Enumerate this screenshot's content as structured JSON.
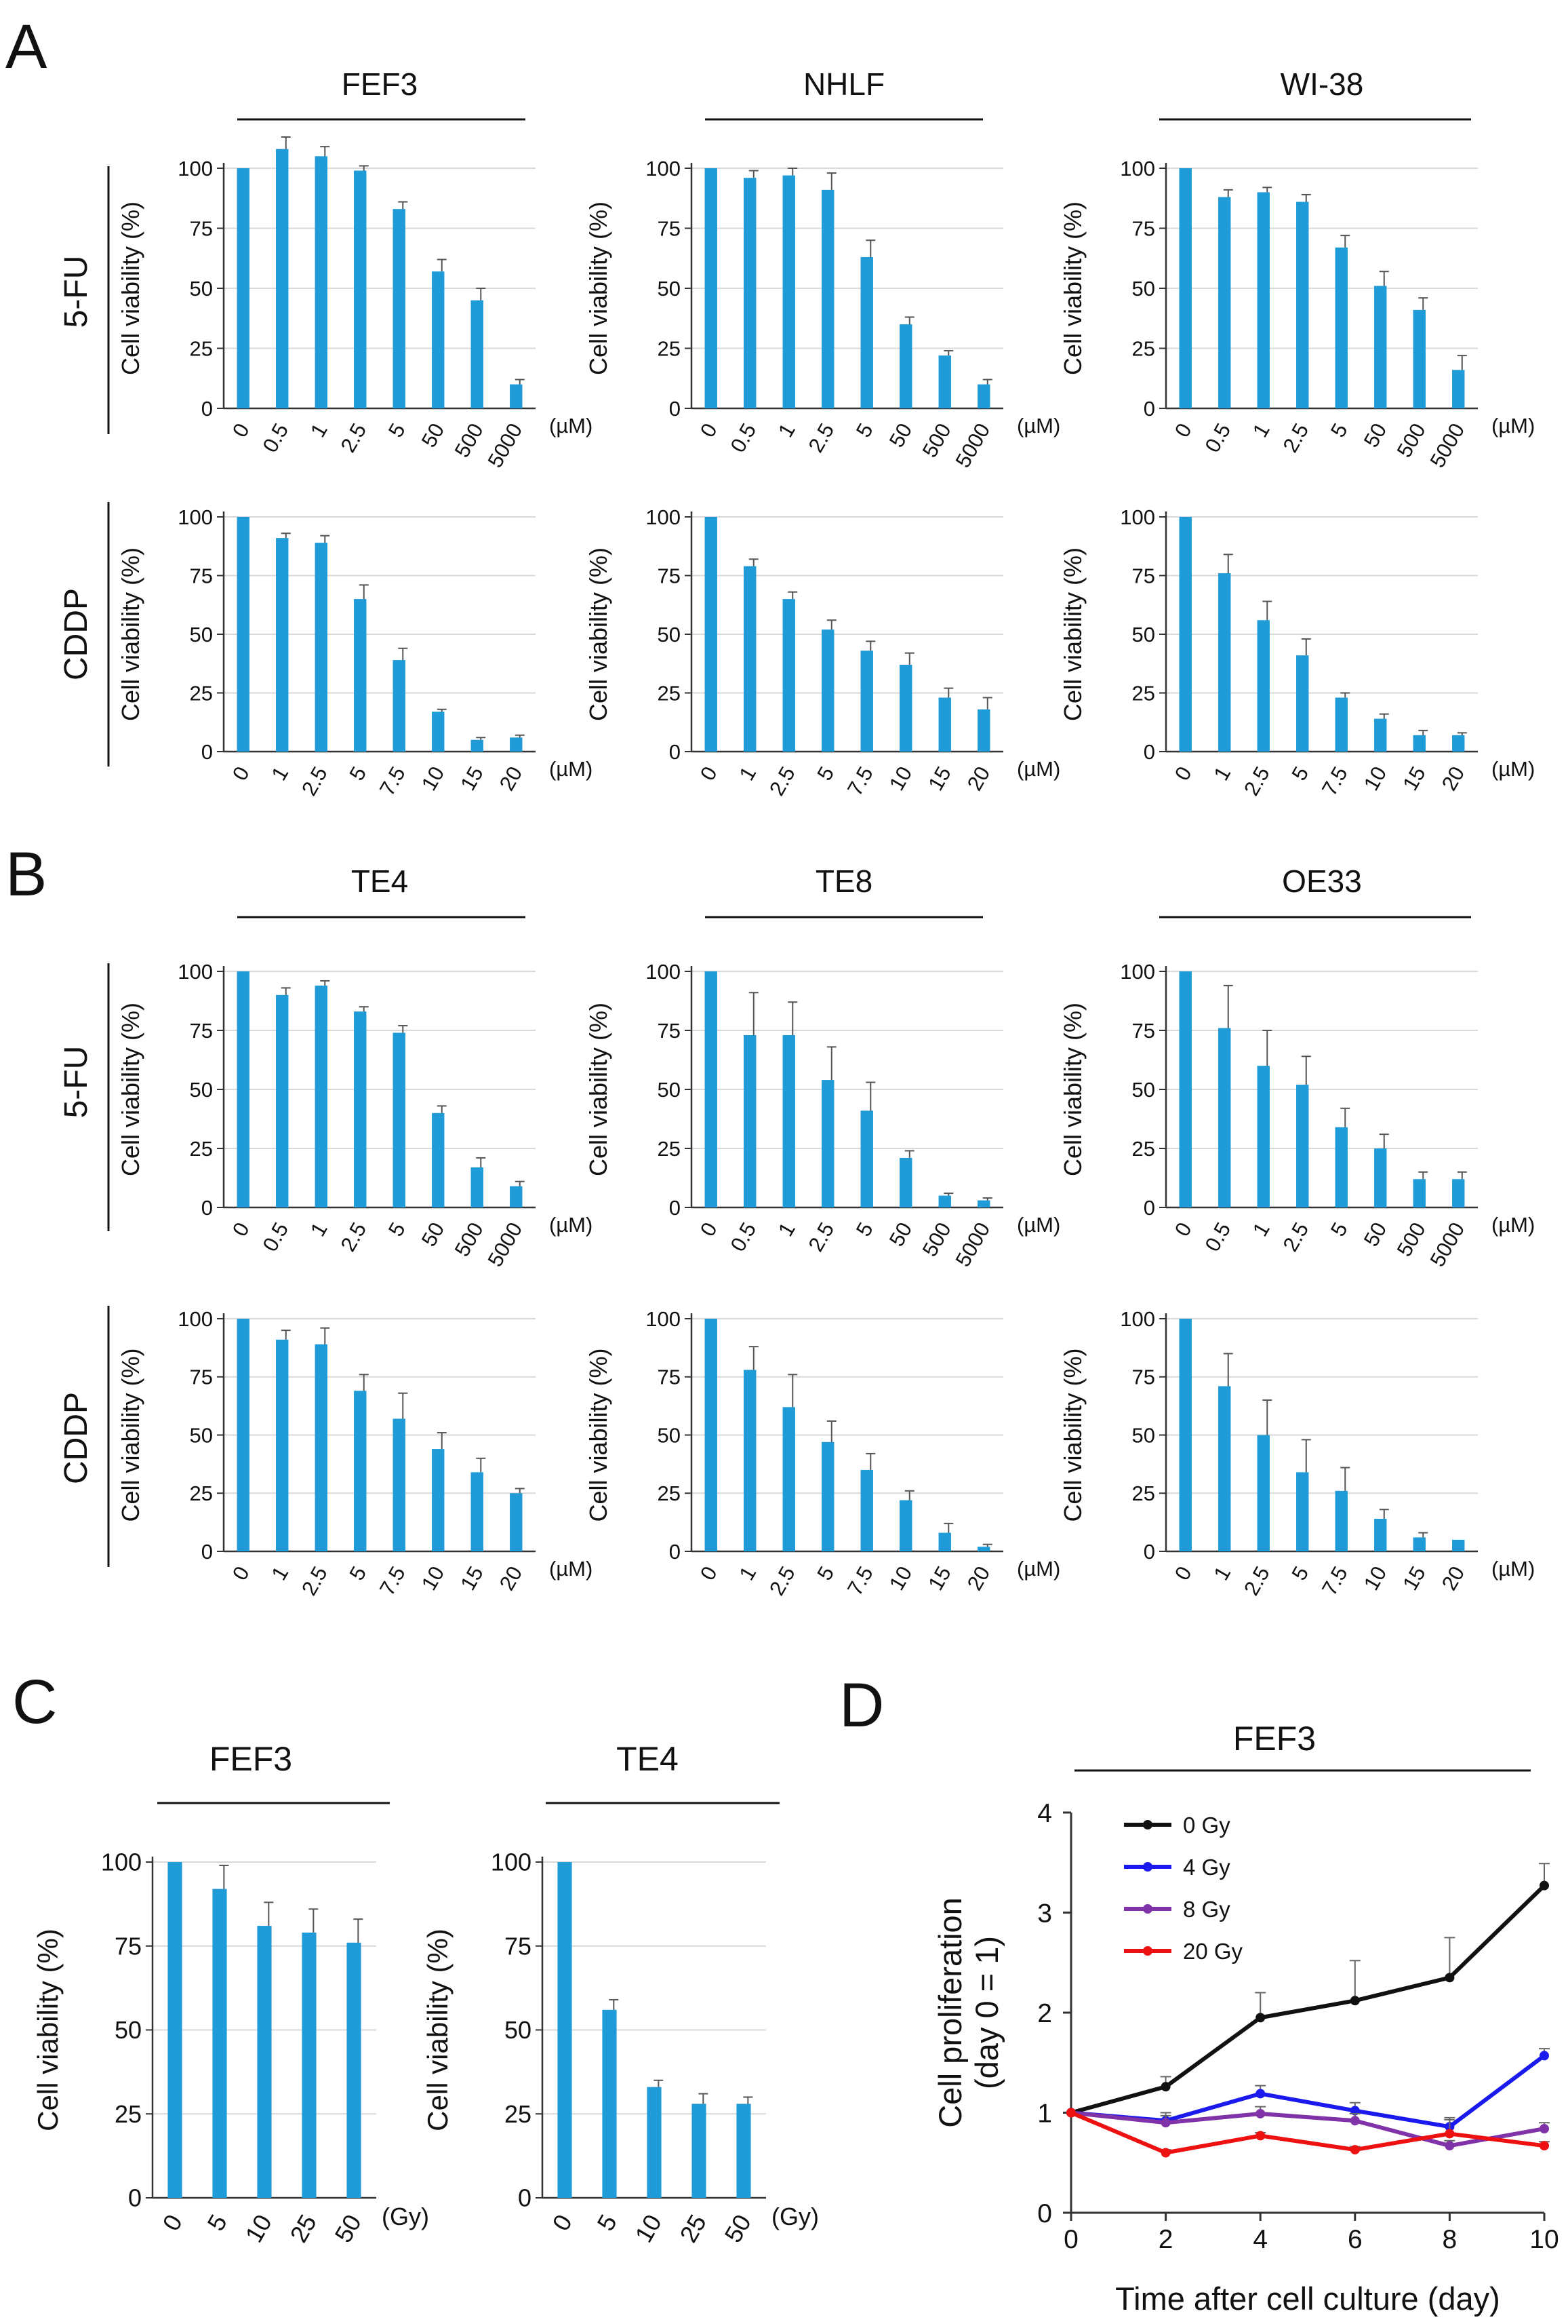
{
  "figure": {
    "panel_labels": [
      "A",
      "B",
      "C",
      "D"
    ],
    "y_axis_label": "Cell viability (%)"
  },
  "chart_data": [
    {
      "id": "A-5FU-FEF3",
      "type": "bar",
      "panel": "A",
      "row_label": "5-FU",
      "title": "FEF3",
      "ylabel": "Cell viability (%)",
      "unit": "(µM)",
      "ylim": [
        0,
        100
      ],
      "yticks": [
        0,
        25,
        50,
        75,
        100
      ],
      "categories": [
        "0",
        "0.5",
        "1",
        "2.5",
        "5",
        "50",
        "500",
        "5000"
      ],
      "values": [
        100,
        108,
        105,
        99,
        83,
        57,
        45,
        10
      ],
      "errors": [
        0,
        5,
        4,
        2,
        3,
        5,
        5,
        2
      ]
    },
    {
      "id": "A-5FU-NHLF",
      "type": "bar",
      "panel": "A",
      "row_label": "5-FU",
      "title": "NHLF",
      "ylabel": "Cell viability (%)",
      "unit": "(µM)",
      "ylim": [
        0,
        100
      ],
      "yticks": [
        0,
        25,
        50,
        75,
        100
      ],
      "categories": [
        "0",
        "0.5",
        "1",
        "2.5",
        "5",
        "50",
        "500",
        "5000"
      ],
      "values": [
        100,
        96,
        97,
        91,
        63,
        35,
        22,
        10
      ],
      "errors": [
        0,
        3,
        3,
        7,
        7,
        3,
        2,
        2
      ]
    },
    {
      "id": "A-5FU-WI38",
      "type": "bar",
      "panel": "A",
      "row_label": "5-FU",
      "title": "WI-38",
      "ylabel": "Cell viability (%)",
      "unit": "(µM)",
      "ylim": [
        0,
        100
      ],
      "yticks": [
        0,
        25,
        50,
        75,
        100
      ],
      "categories": [
        "0",
        "0.5",
        "1",
        "2.5",
        "5",
        "50",
        "500",
        "5000"
      ],
      "values": [
        100,
        88,
        90,
        86,
        67,
        51,
        41,
        16
      ],
      "errors": [
        0,
        3,
        2,
        3,
        5,
        6,
        5,
        6
      ]
    },
    {
      "id": "A-CDDP-FEF3",
      "type": "bar",
      "panel": "A",
      "row_label": "CDDP",
      "title": "FEF3",
      "ylabel": "Cell viability (%)",
      "unit": "(µM)",
      "ylim": [
        0,
        100
      ],
      "yticks": [
        0,
        25,
        50,
        75,
        100
      ],
      "categories": [
        "0",
        "1",
        "2.5",
        "5",
        "7.5",
        "10",
        "15",
        "20"
      ],
      "values": [
        100,
        91,
        89,
        65,
        39,
        17,
        5,
        6
      ],
      "errors": [
        0,
        2,
        3,
        6,
        5,
        1,
        1,
        1
      ]
    },
    {
      "id": "A-CDDP-NHLF",
      "type": "bar",
      "panel": "A",
      "row_label": "CDDP",
      "title": "NHLF",
      "ylabel": "Cell viability (%)",
      "unit": "(µM)",
      "ylim": [
        0,
        100
      ],
      "yticks": [
        0,
        25,
        50,
        75,
        100
      ],
      "categories": [
        "0",
        "1",
        "2.5",
        "5",
        "7.5",
        "10",
        "15",
        "20"
      ],
      "values": [
        100,
        79,
        65,
        52,
        43,
        37,
        23,
        18
      ],
      "errors": [
        0,
        3,
        3,
        4,
        4,
        5,
        4,
        5
      ]
    },
    {
      "id": "A-CDDP-WI38",
      "type": "bar",
      "panel": "A",
      "row_label": "CDDP",
      "title": "WI-38",
      "ylabel": "Cell viability (%)",
      "unit": "(µM)",
      "ylim": [
        0,
        100
      ],
      "yticks": [
        0,
        25,
        50,
        75,
        100
      ],
      "categories": [
        "0",
        "1",
        "2.5",
        "5",
        "7.5",
        "10",
        "15",
        "20"
      ],
      "values": [
        100,
        76,
        56,
        41,
        23,
        14,
        7,
        7
      ],
      "errors": [
        0,
        8,
        8,
        7,
        2,
        2,
        2,
        1
      ]
    },
    {
      "id": "B-5FU-TE4",
      "type": "bar",
      "panel": "B",
      "row_label": "5-FU",
      "title": "TE4",
      "ylabel": "Cell viability (%)",
      "unit": "(µM)",
      "ylim": [
        0,
        100
      ],
      "yticks": [
        0,
        25,
        50,
        75,
        100
      ],
      "categories": [
        "0",
        "0.5",
        "1",
        "2.5",
        "5",
        "50",
        "500",
        "5000"
      ],
      "values": [
        100,
        90,
        94,
        83,
        74,
        40,
        17,
        9
      ],
      "errors": [
        0,
        3,
        2,
        2,
        3,
        3,
        4,
        2
      ]
    },
    {
      "id": "B-5FU-TE8",
      "type": "bar",
      "panel": "B",
      "row_label": "5-FU",
      "title": "TE8",
      "ylabel": "Cell viability (%)",
      "unit": "(µM)",
      "ylim": [
        0,
        100
      ],
      "yticks": [
        0,
        25,
        50,
        75,
        100
      ],
      "categories": [
        "0",
        "0.5",
        "1",
        "2.5",
        "5",
        "50",
        "500",
        "5000"
      ],
      "values": [
        100,
        73,
        73,
        54,
        41,
        21,
        5,
        3
      ],
      "errors": [
        0,
        18,
        14,
        14,
        12,
        3,
        1,
        1
      ]
    },
    {
      "id": "B-5FU-OE33",
      "type": "bar",
      "panel": "B",
      "row_label": "5-FU",
      "title": "OE33",
      "ylabel": "Cell viability (%)",
      "unit": "(µM)",
      "ylim": [
        0,
        100
      ],
      "yticks": [
        0,
        25,
        50,
        75,
        100
      ],
      "categories": [
        "0",
        "0.5",
        "1",
        "2.5",
        "5",
        "50",
        "500",
        "5000"
      ],
      "values": [
        100,
        76,
        60,
        52,
        34,
        25,
        12,
        12
      ],
      "errors": [
        0,
        18,
        15,
        12,
        8,
        6,
        3,
        3
      ]
    },
    {
      "id": "B-CDDP-TE4",
      "type": "bar",
      "panel": "B",
      "row_label": "CDDP",
      "title": "TE4",
      "ylabel": "Cell viability (%)",
      "unit": "(µM)",
      "ylim": [
        0,
        100
      ],
      "yticks": [
        0,
        25,
        50,
        75,
        100
      ],
      "categories": [
        "0",
        "1",
        "2.5",
        "5",
        "7.5",
        "10",
        "15",
        "20"
      ],
      "values": [
        100,
        91,
        89,
        69,
        57,
        44,
        34,
        25
      ],
      "errors": [
        0,
        4,
        7,
        7,
        11,
        7,
        6,
        2
      ]
    },
    {
      "id": "B-CDDP-TE8",
      "type": "bar",
      "panel": "B",
      "row_label": "CDDP",
      "title": "TE8",
      "ylabel": "Cell viability (%)",
      "unit": "(µM)",
      "ylim": [
        0,
        100
      ],
      "yticks": [
        0,
        25,
        50,
        75,
        100
      ],
      "categories": [
        "0",
        "1",
        "2.5",
        "5",
        "7.5",
        "10",
        "15",
        "20"
      ],
      "values": [
        100,
        78,
        62,
        47,
        35,
        22,
        8,
        2
      ],
      "errors": [
        0,
        10,
        14,
        9,
        7,
        4,
        4,
        1
      ]
    },
    {
      "id": "B-CDDP-OE33",
      "type": "bar",
      "panel": "B",
      "row_label": "CDDP",
      "title": "OE33",
      "ylabel": "Cell viability (%)",
      "unit": "(µM)",
      "ylim": [
        0,
        100
      ],
      "yticks": [
        0,
        25,
        50,
        75,
        100
      ],
      "categories": [
        "0",
        "1",
        "2.5",
        "5",
        "7.5",
        "10",
        "15",
        "20"
      ],
      "values": [
        100,
        71,
        50,
        34,
        26,
        14,
        6,
        5
      ],
      "errors": [
        0,
        14,
        15,
        14,
        10,
        4,
        2,
        0
      ]
    },
    {
      "id": "C-FEF3",
      "type": "bar",
      "panel": "C",
      "title": "FEF3",
      "ylabel": "Cell viability (%)",
      "unit": "(Gy)",
      "ylim": [
        0,
        100
      ],
      "yticks": [
        0,
        25,
        50,
        75,
        100
      ],
      "categories": [
        "0",
        "5",
        "10",
        "25",
        "50"
      ],
      "values": [
        100,
        92,
        81,
        79,
        76
      ],
      "errors": [
        0,
        7,
        7,
        7,
        7
      ]
    },
    {
      "id": "C-TE4",
      "type": "bar",
      "panel": "C",
      "title": "TE4",
      "ylabel": "Cell viability (%)",
      "unit": "(Gy)",
      "ylim": [
        0,
        100
      ],
      "yticks": [
        0,
        25,
        50,
        75,
        100
      ],
      "categories": [
        "0",
        "5",
        "10",
        "25",
        "50"
      ],
      "values": [
        100,
        56,
        33,
        28,
        28
      ],
      "errors": [
        0,
        3,
        2,
        3,
        2
      ]
    },
    {
      "id": "D-FEF3",
      "type": "line",
      "panel": "D",
      "title": "FEF3",
      "xlabel": "Time after cell culture (day)",
      "ylabel": "Cell proliferation (day 0 = 1)",
      "xlim": [
        0,
        10
      ],
      "ylim": [
        0,
        4
      ],
      "xticks": [
        0,
        2,
        4,
        6,
        8,
        10
      ],
      "yticks": [
        0,
        1,
        2,
        3,
        4
      ],
      "x": [
        0,
        2,
        4,
        6,
        8,
        10
      ],
      "series": [
        {
          "name": "0 Gy",
          "color": "#111111",
          "values": [
            1,
            1.26,
            1.95,
            2.12,
            2.35,
            3.27
          ],
          "errors": [
            0,
            0.1,
            0.25,
            0.4,
            0.4,
            0.22
          ]
        },
        {
          "name": "4 Gy",
          "color": "#1a1aee",
          "values": [
            1,
            0.92,
            1.19,
            1.02,
            0.86,
            1.57
          ],
          "errors": [
            0,
            0.08,
            0.08,
            0.08,
            0.07,
            0.07
          ]
        },
        {
          "name": "8 Gy",
          "color": "#8032a8",
          "values": [
            1,
            0.9,
            0.99,
            0.92,
            0.67,
            0.84
          ],
          "errors": [
            0,
            0.07,
            0.07,
            0.07,
            0.05,
            0.06
          ]
        },
        {
          "name": "20 Gy",
          "color": "#ee1111",
          "values": [
            1,
            0.6,
            0.77,
            0.63,
            0.79,
            0.67
          ],
          "errors": [
            0,
            0.03,
            0.03,
            0.03,
            0.16,
            0.04
          ]
        }
      ]
    }
  ]
}
